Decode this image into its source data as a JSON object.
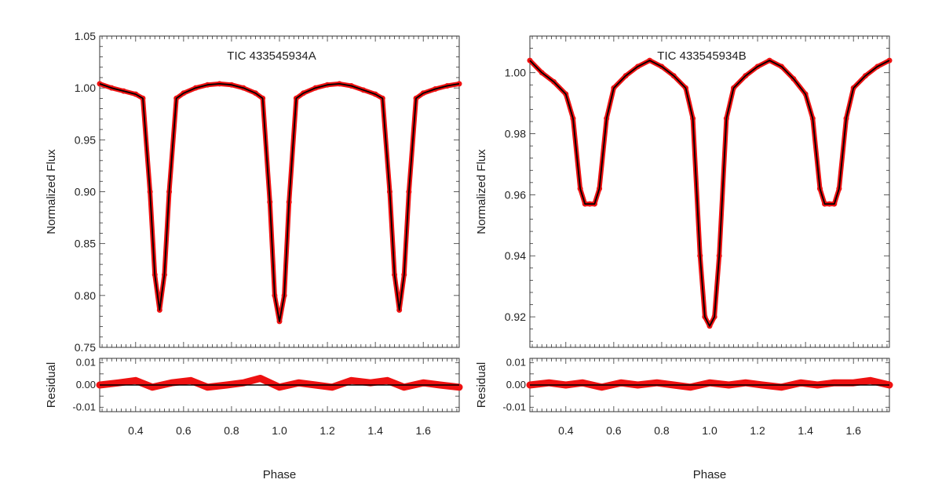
{
  "chart_data": [
    {
      "type": "scatter",
      "title": "TIC 433545934A",
      "xlabel": "Phase",
      "ylabel": "Normalized Flux",
      "residual_label": "Residual",
      "xlim": [
        0.25,
        1.75
      ],
      "ylim": [
        0.75,
        1.05
      ],
      "residual_ylim": [
        -0.012,
        0.012
      ],
      "x_ticks": [
        "0.4",
        "0.6",
        "0.8",
        "1.0",
        "1.2",
        "1.4",
        "1.6"
      ],
      "y_ticks": [
        "0.75",
        "0.80",
        "0.85",
        "0.90",
        "0.95",
        "1.00",
        "1.05"
      ],
      "residual_ticks": [
        "0.01",
        "0.00",
        "-0.01"
      ],
      "grid": false,
      "colors": {
        "data": "#ee1111",
        "model": "#000000"
      },
      "series": [
        {
          "role": "data",
          "x": [
            0.25,
            0.3,
            0.35,
            0.4,
            0.43,
            0.46,
            0.48,
            0.5,
            0.52,
            0.54,
            0.57,
            0.6,
            0.65,
            0.7,
            0.75,
            0.8,
            0.85,
            0.9,
            0.93,
            0.96,
            0.98,
            1.0,
            1.02,
            1.04,
            1.07,
            1.1,
            1.15,
            1.2,
            1.25,
            1.3,
            1.35,
            1.4,
            1.43,
            1.46,
            1.48,
            1.5,
            1.52,
            1.54,
            1.57,
            1.6,
            1.65,
            1.7,
            1.75
          ],
          "y": [
            1.004,
            1.0,
            0.997,
            0.994,
            0.99,
            0.9,
            0.82,
            0.786,
            0.82,
            0.9,
            0.99,
            0.995,
            1.0,
            1.003,
            1.004,
            1.003,
            1.0,
            0.995,
            0.99,
            0.89,
            0.8,
            0.775,
            0.8,
            0.89,
            0.99,
            0.995,
            1.0,
            1.003,
            1.004,
            1.002,
            0.998,
            0.994,
            0.99,
            0.9,
            0.82,
            0.786,
            0.82,
            0.9,
            0.99,
            0.995,
            0.999,
            1.002,
            1.004
          ]
        },
        {
          "role": "model",
          "x": [
            0.25,
            0.3,
            0.35,
            0.4,
            0.43,
            0.46,
            0.48,
            0.5,
            0.52,
            0.54,
            0.57,
            0.6,
            0.65,
            0.7,
            0.75,
            0.8,
            0.85,
            0.9,
            0.93,
            0.96,
            0.98,
            1.0,
            1.02,
            1.04,
            1.07,
            1.1,
            1.15,
            1.2,
            1.25,
            1.3,
            1.35,
            1.4,
            1.43,
            1.46,
            1.48,
            1.5,
            1.52,
            1.54,
            1.57,
            1.6,
            1.65,
            1.7,
            1.75
          ],
          "y": [
            1.004,
            1.0,
            0.997,
            0.994,
            0.99,
            0.9,
            0.82,
            0.786,
            0.82,
            0.9,
            0.99,
            0.995,
            1.0,
            1.003,
            1.004,
            1.003,
            1.0,
            0.995,
            0.99,
            0.89,
            0.8,
            0.775,
            0.8,
            0.89,
            0.99,
            0.995,
            1.0,
            1.003,
            1.004,
            1.002,
            0.998,
            0.994,
            0.99,
            0.9,
            0.82,
            0.786,
            0.82,
            0.9,
            0.99,
            0.995,
            0.999,
            1.002,
            1.004
          ]
        },
        {
          "role": "residual",
          "x": [
            0.25,
            0.33,
            0.4,
            0.47,
            0.55,
            0.63,
            0.7,
            0.78,
            0.85,
            0.92,
            1.0,
            1.08,
            1.15,
            1.22,
            1.3,
            1.38,
            1.45,
            1.52,
            1.6,
            1.67,
            1.75
          ],
          "y": [
            0.0,
            0.001,
            0.002,
            -0.001,
            0.001,
            0.002,
            -0.001,
            0.0,
            0.001,
            0.003,
            -0.001,
            0.001,
            0.0,
            -0.001,
            0.002,
            0.001,
            0.002,
            -0.001,
            0.001,
            0.0,
            -0.001
          ]
        }
      ]
    },
    {
      "type": "scatter",
      "title": "TIC 433545934B",
      "xlabel": "Phase",
      "ylabel": "Normalized Flux",
      "residual_label": "Residual",
      "xlim": [
        0.25,
        1.75
      ],
      "ylim": [
        0.91,
        1.012
      ],
      "residual_ylim": [
        -0.012,
        0.012
      ],
      "x_ticks": [
        "0.4",
        "0.6",
        "0.8",
        "1.0",
        "1.2",
        "1.4",
        "1.6"
      ],
      "y_ticks": [
        "0.92",
        "0.94",
        "0.96",
        "0.98",
        "1.00"
      ],
      "residual_ticks": [
        "0.01",
        "0.00",
        "-0.01"
      ],
      "grid": false,
      "colors": {
        "data": "#ee1111",
        "model": "#000000"
      },
      "series": [
        {
          "role": "data",
          "x": [
            0.25,
            0.3,
            0.35,
            0.4,
            0.43,
            0.46,
            0.48,
            0.5,
            0.52,
            0.54,
            0.57,
            0.6,
            0.65,
            0.7,
            0.75,
            0.8,
            0.85,
            0.9,
            0.93,
            0.96,
            0.98,
            1.0,
            1.02,
            1.04,
            1.07,
            1.1,
            1.15,
            1.2,
            1.25,
            1.3,
            1.35,
            1.4,
            1.43,
            1.46,
            1.48,
            1.5,
            1.52,
            1.54,
            1.57,
            1.6,
            1.65,
            1.7,
            1.75
          ],
          "y": [
            1.004,
            1.0,
            0.997,
            0.993,
            0.985,
            0.962,
            0.957,
            0.957,
            0.957,
            0.962,
            0.985,
            0.995,
            0.999,
            1.002,
            1.004,
            1.002,
            0.999,
            0.995,
            0.985,
            0.94,
            0.92,
            0.917,
            0.92,
            0.94,
            0.985,
            0.995,
            0.999,
            1.002,
            1.004,
            1.002,
            0.998,
            0.993,
            0.985,
            0.962,
            0.957,
            0.957,
            0.957,
            0.962,
            0.985,
            0.995,
            0.999,
            1.002,
            1.004
          ]
        },
        {
          "role": "model",
          "x": [
            0.25,
            0.3,
            0.35,
            0.4,
            0.43,
            0.46,
            0.48,
            0.5,
            0.52,
            0.54,
            0.57,
            0.6,
            0.65,
            0.7,
            0.75,
            0.8,
            0.85,
            0.9,
            0.93,
            0.96,
            0.98,
            1.0,
            1.02,
            1.04,
            1.07,
            1.1,
            1.15,
            1.2,
            1.25,
            1.3,
            1.35,
            1.4,
            1.43,
            1.46,
            1.48,
            1.5,
            1.52,
            1.54,
            1.57,
            1.6,
            1.65,
            1.7,
            1.75
          ],
          "y": [
            1.004,
            1.0,
            0.997,
            0.993,
            0.985,
            0.962,
            0.957,
            0.957,
            0.957,
            0.962,
            0.985,
            0.995,
            0.999,
            1.002,
            1.004,
            1.002,
            0.999,
            0.995,
            0.985,
            0.94,
            0.92,
            0.917,
            0.92,
            0.94,
            0.985,
            0.995,
            0.999,
            1.002,
            1.004,
            1.002,
            0.998,
            0.993,
            0.985,
            0.962,
            0.957,
            0.957,
            0.957,
            0.962,
            0.985,
            0.995,
            0.999,
            1.002,
            1.004
          ]
        },
        {
          "role": "residual",
          "x": [
            0.25,
            0.33,
            0.4,
            0.47,
            0.55,
            0.63,
            0.7,
            0.78,
            0.85,
            0.92,
            1.0,
            1.08,
            1.15,
            1.22,
            1.3,
            1.38,
            1.45,
            1.52,
            1.6,
            1.67,
            1.75
          ],
          "y": [
            0.0,
            0.001,
            0.0,
            0.001,
            -0.001,
            0.001,
            0.0,
            0.001,
            0.0,
            -0.001,
            0.001,
            0.0,
            0.001,
            0.0,
            -0.001,
            0.001,
            0.0,
            0.001,
            0.001,
            0.002,
            0.0
          ]
        }
      ]
    }
  ]
}
